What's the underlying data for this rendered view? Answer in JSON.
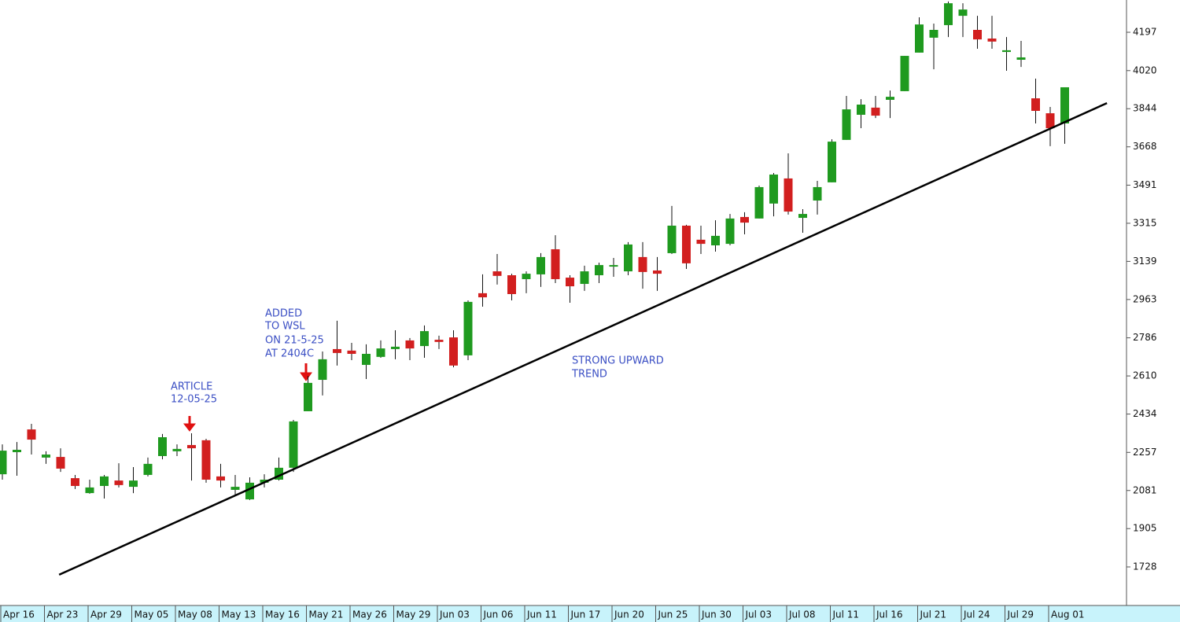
{
  "chart_data": {
    "type": "candlestick",
    "categories": [
      "Apr 16",
      null,
      null,
      "Apr 23",
      null,
      null,
      "Apr 29",
      null,
      null,
      "May 05",
      null,
      null,
      "May 08",
      null,
      null,
      "May 13",
      null,
      null,
      "May 16",
      null,
      null,
      "May 21",
      null,
      null,
      "May 26",
      null,
      null,
      "May 29",
      null,
      null,
      "Jun 03",
      null,
      null,
      "Jun 06",
      null,
      null,
      "Jun 11",
      null,
      null,
      "Jun 17",
      null,
      null,
      "Jun 20",
      null,
      null,
      "Jun 25",
      null,
      null,
      "Jun 30",
      null,
      null,
      "Jul 03",
      null,
      null,
      "Jul 08",
      null,
      null,
      "Jul 11",
      null,
      null,
      "Jul 16",
      null,
      null,
      "Jul 21",
      null,
      null,
      "Jul 24",
      null,
      null,
      "Jul 29",
      null,
      null,
      "Aug 01",
      null
    ],
    "open": [
      2156,
      2258,
      2363,
      2233,
      2236,
      2138,
      2069,
      2102,
      2127,
      2098,
      2153,
      2240,
      2262,
      2291,
      2313,
      2146,
      2084,
      2040,
      2117,
      2131,
      2186,
      2447,
      2592,
      2734,
      2727,
      2661,
      2698,
      2734,
      2774,
      2748,
      2777,
      2788,
      2705,
      2992,
      3093,
      3075,
      3057,
      3079,
      3195,
      3064,
      3035,
      3075,
      3115,
      3093,
      3159,
      3097,
      3177,
      3304,
      3239,
      3213,
      3220,
      3344,
      3337,
      3406,
      3522,
      3340,
      3420,
      3504,
      3700,
      3816,
      3849,
      3885,
      3925,
      4103,
      4172,
      4230,
      4273,
      4208,
      4168,
      4106,
      4070,
      3892,
      3823,
      3776
    ],
    "high": [
      2294,
      2305,
      2389,
      2262,
      2276,
      2153,
      2131,
      2153,
      2207,
      2189,
      2233,
      2342,
      2294,
      2345,
      2320,
      2204,
      2153,
      2142,
      2156,
      2233,
      2407,
      2610,
      2723,
      2865,
      2763,
      2756,
      2774,
      2821,
      2785,
      2843,
      2796,
      2821,
      2959,
      3079,
      3173,
      3082,
      3093,
      3177,
      3260,
      3075,
      3119,
      3133,
      3155,
      3228,
      3228,
      3159,
      3395,
      3308,
      3304,
      3329,
      3358,
      3366,
      3489,
      3547,
      3638,
      3380,
      3511,
      3703,
      3903,
      3888,
      3903,
      3928,
      4088,
      4266,
      4237,
      4339,
      4331,
      4273,
      4273,
      4175,
      4157,
      3983,
      3852,
      3943
    ],
    "low": [
      2131,
      2149,
      2247,
      2204,
      2167,
      2088,
      2066,
      2044,
      2095,
      2069,
      2146,
      2225,
      2240,
      2127,
      2117,
      2095,
      2058,
      2037,
      2095,
      2127,
      2167,
      2447,
      2520,
      2658,
      2683,
      2596,
      2694,
      2687,
      2683,
      2694,
      2734,
      2650,
      2683,
      2930,
      3032,
      2959,
      2992,
      3021,
      3039,
      2948,
      3003,
      3039,
      3068,
      3075,
      3013,
      3003,
      3173,
      3104,
      3173,
      3184,
      3213,
      3264,
      3337,
      3347,
      3355,
      3271,
      3355,
      3504,
      3700,
      3754,
      3801,
      3801,
      3925,
      4103,
      4026,
      4175,
      4175,
      4121,
      4121,
      4019,
      4037,
      3776,
      3671,
      3682
    ],
    "close": [
      2265,
      2269,
      2316,
      2247,
      2182,
      2102,
      2095,
      2146,
      2106,
      2127,
      2204,
      2327,
      2273,
      2276,
      2131,
      2127,
      2098,
      2117,
      2131,
      2186,
      2400,
      2578,
      2687,
      2716,
      2712,
      2712,
      2737,
      2745,
      2737,
      2817,
      2767,
      2658,
      2952,
      2973,
      3072,
      2988,
      3082,
      3159,
      3057,
      3024,
      3093,
      3122,
      3122,
      3217,
      3090,
      3082,
      3304,
      3130,
      3220,
      3257,
      3337,
      3318,
      3482,
      3540,
      3369,
      3358,
      3482,
      3692,
      3841,
      3863,
      3812,
      3899,
      4088,
      4233,
      4208,
      4331,
      4302,
      4164,
      4154,
      4114,
      4081,
      3834,
      3754,
      3943
    ],
    "up_color": "#1f9a1f",
    "down_color": "#d21f1f",
    "ylim": [
      1550,
      4346
    ],
    "yticks": [
      1728,
      1905,
      2081,
      2257,
      2434,
      2610,
      2786,
      2963,
      3139,
      3315,
      3491,
      3668,
      3844,
      4020,
      4197
    ],
    "trendline": [
      [
        3.9,
        1692
      ],
      [
        75.9,
        3870
      ]
    ],
    "annotations": [
      {
        "lines": [
          "ARTICLE",
          "12-05-25"
        ]
      },
      {
        "lines": [
          "ADDED",
          "TO WSL",
          "ON 21-5-25",
          "AT 2404C"
        ]
      },
      {
        "lines": [
          "STRONG UPWARD",
          "TREND"
        ]
      }
    ]
  }
}
